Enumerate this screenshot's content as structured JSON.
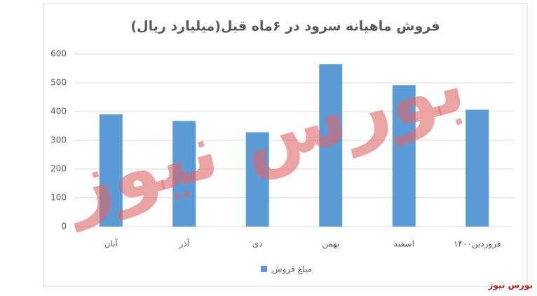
{
  "chart_data": {
    "type": "bar",
    "title": "فروش ماهیانه سرود در ۶ماه قبل(میلیارد ریال)",
    "categories": [
      "آبان",
      "آذر",
      "دی",
      "بهمن",
      "اسفند",
      "فروردین۱۴۰۰"
    ],
    "series": [
      {
        "name": "مبلغ فروش",
        "color": "#5b9bd5",
        "values": [
          390,
          367,
          328,
          565,
          492,
          406
        ]
      }
    ],
    "ylim": [
      0,
      600
    ],
    "yticks": [
      0,
      100,
      200,
      300,
      400,
      500,
      600
    ],
    "grid": true,
    "legend": "bottom",
    "watermark": "بورس نیوز",
    "source": "بورس نیوز"
  }
}
